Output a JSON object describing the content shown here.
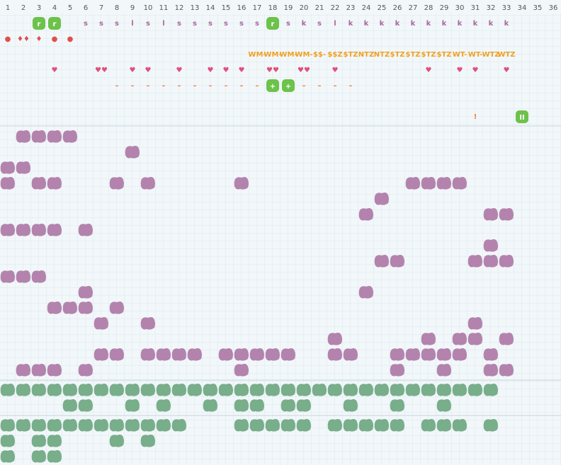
{
  "columns": [
    1,
    2,
    3,
    4,
    5,
    6,
    7,
    8,
    9,
    10,
    11,
    12,
    13,
    14,
    15,
    16,
    17,
    18,
    19,
    20,
    21,
    22,
    23,
    24,
    25,
    26,
    27,
    28,
    29,
    30,
    31,
    32,
    33,
    34,
    35,
    36
  ],
  "top_rows": [
    {
      "color": "#a86a9a",
      "cells": [
        {
          "col": 3,
          "text": "r",
          "badge": true
        },
        {
          "col": 4,
          "text": "r",
          "badge": true
        },
        {
          "col": 6,
          "text": "s"
        },
        {
          "col": 7,
          "text": "s"
        },
        {
          "col": 8,
          "text": "s"
        },
        {
          "col": 9,
          "text": "l"
        },
        {
          "col": 10,
          "text": "s"
        },
        {
          "col": 11,
          "text": "l"
        },
        {
          "col": 12,
          "text": "s"
        },
        {
          "col": 13,
          "text": "s"
        },
        {
          "col": 14,
          "text": "s"
        },
        {
          "col": 15,
          "text": "s"
        },
        {
          "col": 16,
          "text": "s"
        },
        {
          "col": 17,
          "text": "s"
        },
        {
          "col": 18,
          "text": "r",
          "badge": true
        },
        {
          "col": 19,
          "text": "s"
        },
        {
          "col": 20,
          "text": "k"
        },
        {
          "col": 21,
          "text": "s"
        },
        {
          "col": 22,
          "text": "l"
        },
        {
          "col": 23,
          "text": "k"
        },
        {
          "col": 24,
          "text": "k"
        },
        {
          "col": 25,
          "text": "k"
        },
        {
          "col": 26,
          "text": "k"
        },
        {
          "col": 27,
          "text": "k"
        },
        {
          "col": 28,
          "text": "k"
        },
        {
          "col": 29,
          "text": "k"
        },
        {
          "col": 30,
          "text": "k"
        },
        {
          "col": 31,
          "text": "k"
        },
        {
          "col": 32,
          "text": "k"
        },
        {
          "col": 33,
          "text": "k"
        }
      ]
    },
    {
      "color": "#e0504a",
      "cells": [
        {
          "col": 1,
          "text": "●"
        },
        {
          "col": 2,
          "text": "♦♦"
        },
        {
          "col": 3,
          "text": "♦"
        },
        {
          "col": 4,
          "text": "●"
        },
        {
          "col": 5,
          "text": "●"
        }
      ]
    },
    {
      "color": "#f0a020",
      "cells": [
        {
          "col": 17,
          "text": "WM-"
        },
        {
          "col": 18,
          "text": "WM-"
        },
        {
          "col": 19,
          "text": "WM-"
        },
        {
          "col": 20,
          "text": "WM-"
        },
        {
          "col": 21,
          "text": "$$-"
        },
        {
          "col": 22,
          "text": "$$Z"
        },
        {
          "col": 23,
          "text": "$TZ"
        },
        {
          "col": 24,
          "text": "NTZ"
        },
        {
          "col": 25,
          "text": "NTZ"
        },
        {
          "col": 26,
          "text": "$TZ"
        },
        {
          "col": 27,
          "text": "$TZ"
        },
        {
          "col": 28,
          "text": "$TZ"
        },
        {
          "col": 29,
          "text": "$TZ"
        },
        {
          "col": 30,
          "text": "WT-"
        },
        {
          "col": 31,
          "text": "WT-"
        },
        {
          "col": 32,
          "text": "WTZ"
        },
        {
          "col": 33,
          "text": "WTZ"
        }
      ]
    },
    {
      "color": "#e0507a",
      "cells": [
        {
          "col": 4,
          "text": "♥"
        },
        {
          "col": 7,
          "text": "♥♥"
        },
        {
          "col": 9,
          "text": "♥"
        },
        {
          "col": 10,
          "text": "♥"
        },
        {
          "col": 12,
          "text": "♥"
        },
        {
          "col": 14,
          "text": "♥"
        },
        {
          "col": 15,
          "text": "♥"
        },
        {
          "col": 16,
          "text": "♥"
        },
        {
          "col": 18,
          "text": "♥♥"
        },
        {
          "col": 20,
          "text": "♥♥"
        },
        {
          "col": 22,
          "text": "♥"
        },
        {
          "col": 28,
          "text": "♥"
        },
        {
          "col": 30,
          "text": "♥"
        },
        {
          "col": 31,
          "text": "♥"
        },
        {
          "col": 33,
          "text": "♥"
        }
      ]
    },
    {
      "color": "#f08040",
      "cells": [
        {
          "col": 8,
          "text": "–"
        },
        {
          "col": 9,
          "text": "–"
        },
        {
          "col": 10,
          "text": "–"
        },
        {
          "col": 11,
          "text": "–"
        },
        {
          "col": 12,
          "text": "–"
        },
        {
          "col": 13,
          "text": "–"
        },
        {
          "col": 14,
          "text": "–"
        },
        {
          "col": 15,
          "text": "–"
        },
        {
          "col": 16,
          "text": "–"
        },
        {
          "col": 17,
          "text": "–"
        },
        {
          "col": 18,
          "text": "+",
          "badge": true
        },
        {
          "col": 19,
          "text": "+",
          "badge": true
        },
        {
          "col": 20,
          "text": "–"
        },
        {
          "col": 21,
          "text": "–"
        },
        {
          "col": 22,
          "text": "–"
        },
        {
          "col": 23,
          "text": "–"
        }
      ]
    },
    {
      "color": "#a86a9a",
      "cells": []
    },
    {
      "color": "#f08040",
      "cells": [
        {
          "col": 31,
          "text": "!"
        },
        {
          "col": 34,
          "text": "II",
          "badge": true
        }
      ]
    }
  ],
  "sections": [
    {
      "color": "#b383ad",
      "rows": [
        [
          2,
          3,
          4,
          5
        ],
        [
          9
        ],
        [
          1,
          2
        ],
        [
          1,
          3,
          4,
          8,
          10,
          16,
          27,
          28,
          29,
          30
        ],
        [
          25
        ],
        [
          24,
          32,
          33
        ],
        [
          1,
          2,
          3,
          4,
          6
        ],
        [
          32
        ],
        [
          25,
          26,
          31,
          32,
          33
        ],
        [
          1,
          2,
          3
        ],
        [
          6,
          24
        ],
        [
          4,
          5,
          6,
          8
        ],
        [
          7,
          10,
          31
        ],
        [
          22,
          28,
          30,
          31,
          33
        ],
        [
          7,
          8,
          10,
          11,
          12,
          13,
          15,
          16,
          17,
          18,
          19,
          22,
          23,
          26,
          27,
          28,
          29,
          30,
          32
        ],
        [
          2,
          3,
          4,
          6,
          16,
          26,
          29,
          32,
          33
        ]
      ]
    },
    {
      "color": "#78ae8a",
      "rows": [
        [
          1,
          2,
          3,
          4,
          5,
          6,
          7,
          8,
          9,
          10,
          11,
          12,
          13,
          14,
          15,
          16,
          17,
          18,
          19,
          20,
          21,
          22,
          23,
          24,
          25,
          26,
          27,
          28,
          29,
          30,
          31,
          32
        ],
        [
          5,
          6,
          9,
          11,
          14,
          16,
          17,
          19,
          20,
          23,
          26,
          29
        ]
      ]
    },
    {
      "color": "#78ae8a",
      "rows": [
        [
          1,
          2,
          3,
          4,
          5,
          6,
          7,
          8,
          9,
          10,
          11,
          12,
          16,
          17,
          18,
          19,
          20,
          22,
          23,
          24,
          25,
          26,
          28,
          29,
          30,
          32
        ],
        [
          1,
          3,
          4,
          8,
          10
        ],
        [
          1,
          3,
          4
        ]
      ]
    }
  ]
}
